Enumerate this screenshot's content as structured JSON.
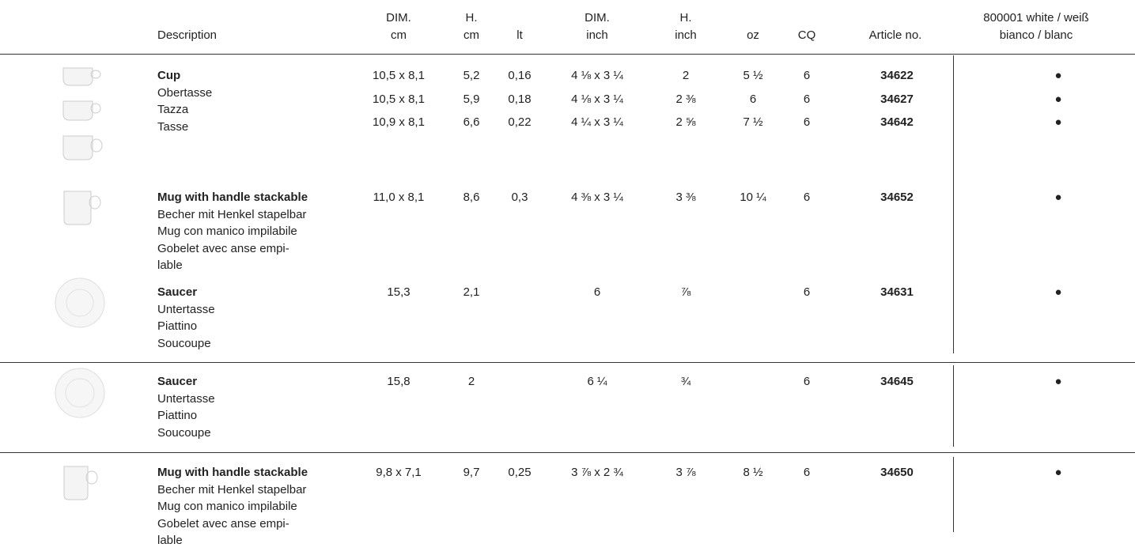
{
  "header": {
    "columns": [
      [
        "Description"
      ],
      [
        "DIM.",
        "cm"
      ],
      [
        "H.",
        "cm"
      ],
      [
        "lt"
      ],
      [
        "DIM.",
        "inch"
      ],
      [
        "H.",
        "inch"
      ],
      [
        "oz"
      ],
      [
        "CQ"
      ],
      [
        "Article no."
      ],
      [
        "800001 white / weiß",
        "bianco / blanc"
      ]
    ]
  },
  "sections": [
    {
      "groups": [
        {
          "description": [
            "Cup",
            "Obertasse",
            "Tazza",
            "Tasse"
          ],
          "rows": [
            [
              "10,5 x 8,1",
              "5,2",
              "0,16",
              "4 ⅛ x 3 ¼",
              "2",
              "5 ½",
              "6",
              "34622",
              "●"
            ],
            [
              "10,5 x 8,1",
              "5,9",
              "0,18",
              "4 ⅛ x 3 ¼",
              "2 ⅜",
              "6",
              "6",
              "34627",
              "●"
            ],
            [
              "10,9 x 8,1",
              "6,6",
              "0,22",
              "4 ¼ x 3 ¼",
              "2 ⅝",
              "7 ½",
              "6",
              "34642",
              "●"
            ]
          ]
        },
        {
          "description": [
            "Mug with handle stackable",
            "Becher mit Henkel stapelbar",
            "Mug con manico impilabile",
            "Gobelet avec anse empi-",
            "lable"
          ],
          "rows": [
            [
              "11,0 x 8,1",
              "8,6",
              "0,3",
              "4 ⅜ x 3 ¼",
              "3 ⅜",
              "10 ¼",
              "6",
              "34652",
              "●"
            ]
          ]
        },
        {
          "description": [
            "Saucer",
            "Untertasse",
            "Piattino",
            "Soucoupe"
          ],
          "rows": [
            [
              "15,3",
              "2,1",
              null,
              "6",
              "⅞",
              null,
              "6",
              "34631",
              "●"
            ]
          ]
        }
      ]
    },
    {
      "groups": [
        {
          "description": [
            "Saucer",
            "Untertasse",
            "Piattino",
            "Soucoupe"
          ],
          "rows": [
            [
              "15,8",
              "2",
              null,
              "6 ¼",
              "¾",
              null,
              "6",
              "34645",
              "●"
            ]
          ]
        }
      ]
    },
    {
      "groups": [
        {
          "description": [
            "Mug with handle stackable",
            "Becher mit Henkel stapelbar",
            "Mug con manico impilabile",
            "Gobelet avec anse empi-",
            "lable"
          ],
          "rows": [
            [
              "9,8 x 7,1",
              "9,7",
              "0,25",
              "3 ⅞ x 2 ¾",
              "3 ⅞",
              "8 ½",
              "6",
              "34650",
              "●"
            ]
          ]
        }
      ]
    }
  ]
}
